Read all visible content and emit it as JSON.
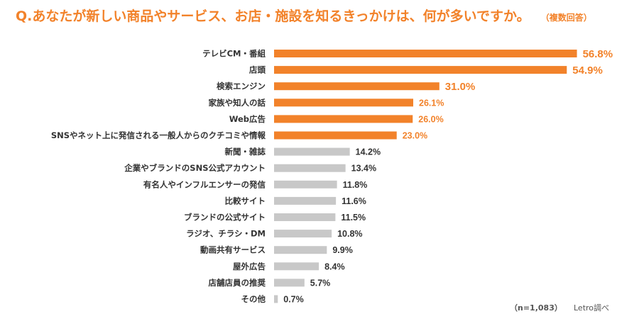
{
  "title": {
    "question": "Q.あなたが新しい商品やサービス、お店・施設を知るきっかけは、何が多いですか。",
    "note": "（複数回答）"
  },
  "footer": {
    "sample_size": "（n=1,083）",
    "source": "Letro調べ"
  },
  "colors": {
    "highlight": "#f2822a",
    "normal": "#c8c8c8",
    "label": "#333333",
    "value_dark": "#333333"
  },
  "chart_data": {
    "type": "bar",
    "orientation": "horizontal",
    "unit": "%",
    "xlim": [
      0,
      60
    ],
    "grid": false,
    "categories": [
      "テレビCM・番組",
      "店頭",
      "検索エンジン",
      "家族や知人の話",
      "Web広告",
      "SNSやネット上に発信される一般人からのクチコミや情報",
      "新聞・雑誌",
      "企業やブランドのSNS公式アカウント",
      "有名人やインフルエンサーの発信",
      "比較サイト",
      "ブランドの公式サイト",
      "ラジオ、チラシ・DM",
      "動画共有サービス",
      "屋外広告",
      "店舗店員の推奨",
      "その他"
    ],
    "values": [
      56.8,
      54.9,
      31.0,
      26.1,
      26.0,
      23.0,
      14.2,
      13.4,
      11.8,
      11.6,
      11.5,
      10.8,
      9.9,
      8.4,
      5.7,
      0.7
    ],
    "value_labels": [
      "56.8%",
      "54.9%",
      "31.0%",
      "26.1%",
      "26.0%",
      "23.0%",
      "14.2%",
      "13.4%",
      "11.8%",
      "11.6%",
      "11.5%",
      "10.8%",
      "9.9%",
      "8.4%",
      "5.7%",
      "0.7%"
    ],
    "highlighted_count": 6
  }
}
